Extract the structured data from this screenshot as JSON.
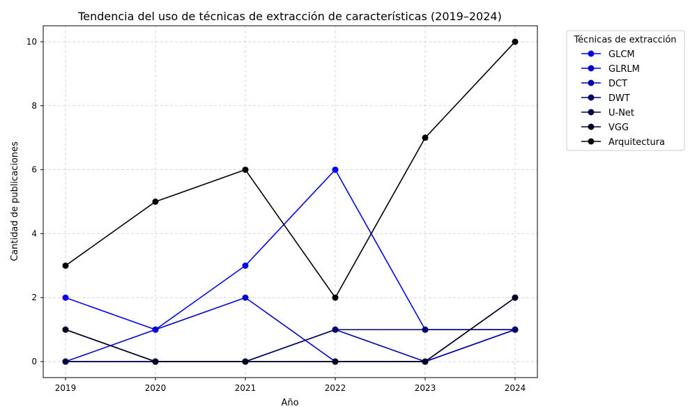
{
  "chart_data": {
    "type": "line",
    "title": "Tendencia del uso de técnicas de extracción de características (2019–2024)",
    "xlabel": "Año",
    "ylabel": "Cantidad de publicaciones",
    "x": [
      2019,
      2020,
      2021,
      2022,
      2023,
      2024
    ],
    "ylim": [
      -0.5,
      10.5
    ],
    "yticks": [
      0,
      2,
      4,
      6,
      8,
      10
    ],
    "grid": true,
    "legend": {
      "title": "Técnicas de extracción",
      "placement": "outside-top-right"
    },
    "series": [
      {
        "name": "GLCM",
        "color": "#0000ee",
        "values": [
          2,
          1,
          3,
          6,
          1,
          1
        ]
      },
      {
        "name": "GLRLM",
        "color": "#0000cc",
        "values": [
          0,
          1,
          2,
          0,
          0,
          1
        ]
      },
      {
        "name": "DCT",
        "color": "#0000aa",
        "values": [
          0,
          0,
          0,
          1,
          0,
          1
        ]
      },
      {
        "name": "DWT",
        "color": "#000066",
        "values": [
          1,
          0,
          0,
          1,
          1,
          1
        ]
      },
      {
        "name": "U-Net",
        "color": "#000044",
        "values": [
          0,
          0,
          0,
          0,
          0,
          2
        ]
      },
      {
        "name": "VGG",
        "color": "#000022",
        "values": [
          1,
          0,
          0,
          0,
          0,
          2
        ]
      },
      {
        "name": "Arquitectura",
        "color": "#000000",
        "values": [
          3,
          5,
          6,
          2,
          7,
          10
        ]
      }
    ]
  }
}
